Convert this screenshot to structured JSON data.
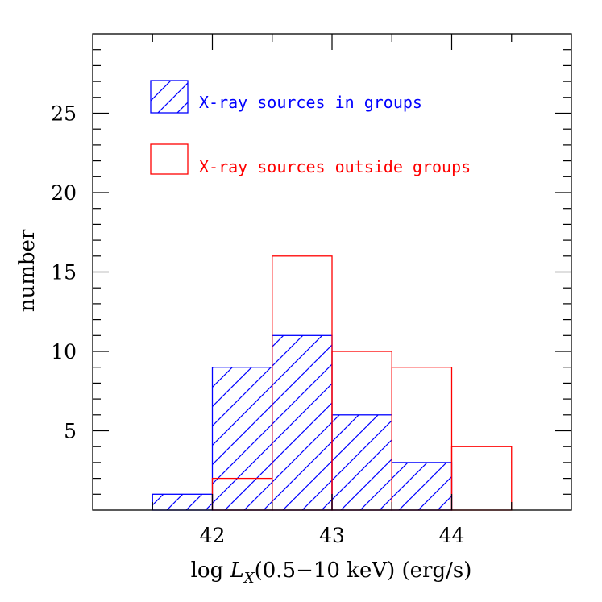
{
  "chart_data": {
    "type": "histogram",
    "xlabel": {
      "prefix": "log ",
      "var": "L",
      "sub": "X",
      "suffix": "(0.5−10 keV)    (erg/s)"
    },
    "ylabel": "number",
    "xlim": [
      41,
      45
    ],
    "ylim": [
      0,
      30
    ],
    "x_ticks": [
      42,
      43,
      44
    ],
    "y_ticks": [
      5,
      10,
      15,
      20,
      25
    ],
    "x_minor_ticks": [
      41.5,
      42.5,
      43.5,
      44.5
    ],
    "y_minor_ticks": [
      1,
      2,
      3,
      4,
      6,
      7,
      8,
      9,
      11,
      12,
      13,
      14,
      16,
      17,
      18,
      19,
      21,
      22,
      23,
      24,
      26,
      27,
      28,
      29
    ],
    "bin_edges": [
      41.5,
      42.0,
      42.5,
      43.0,
      43.5,
      44.0,
      44.5
    ],
    "grid": false,
    "legend_position": "top-left",
    "series": [
      {
        "name": "X-ray sources in groups",
        "style": "hatched",
        "color": "#0000ff",
        "values": [
          1,
          9,
          11,
          6,
          3,
          0
        ]
      },
      {
        "name": "X-ray sources outside groups",
        "style": "outline",
        "color": "#ff0000",
        "values": [
          0,
          2,
          16,
          10,
          9,
          4
        ]
      }
    ]
  }
}
